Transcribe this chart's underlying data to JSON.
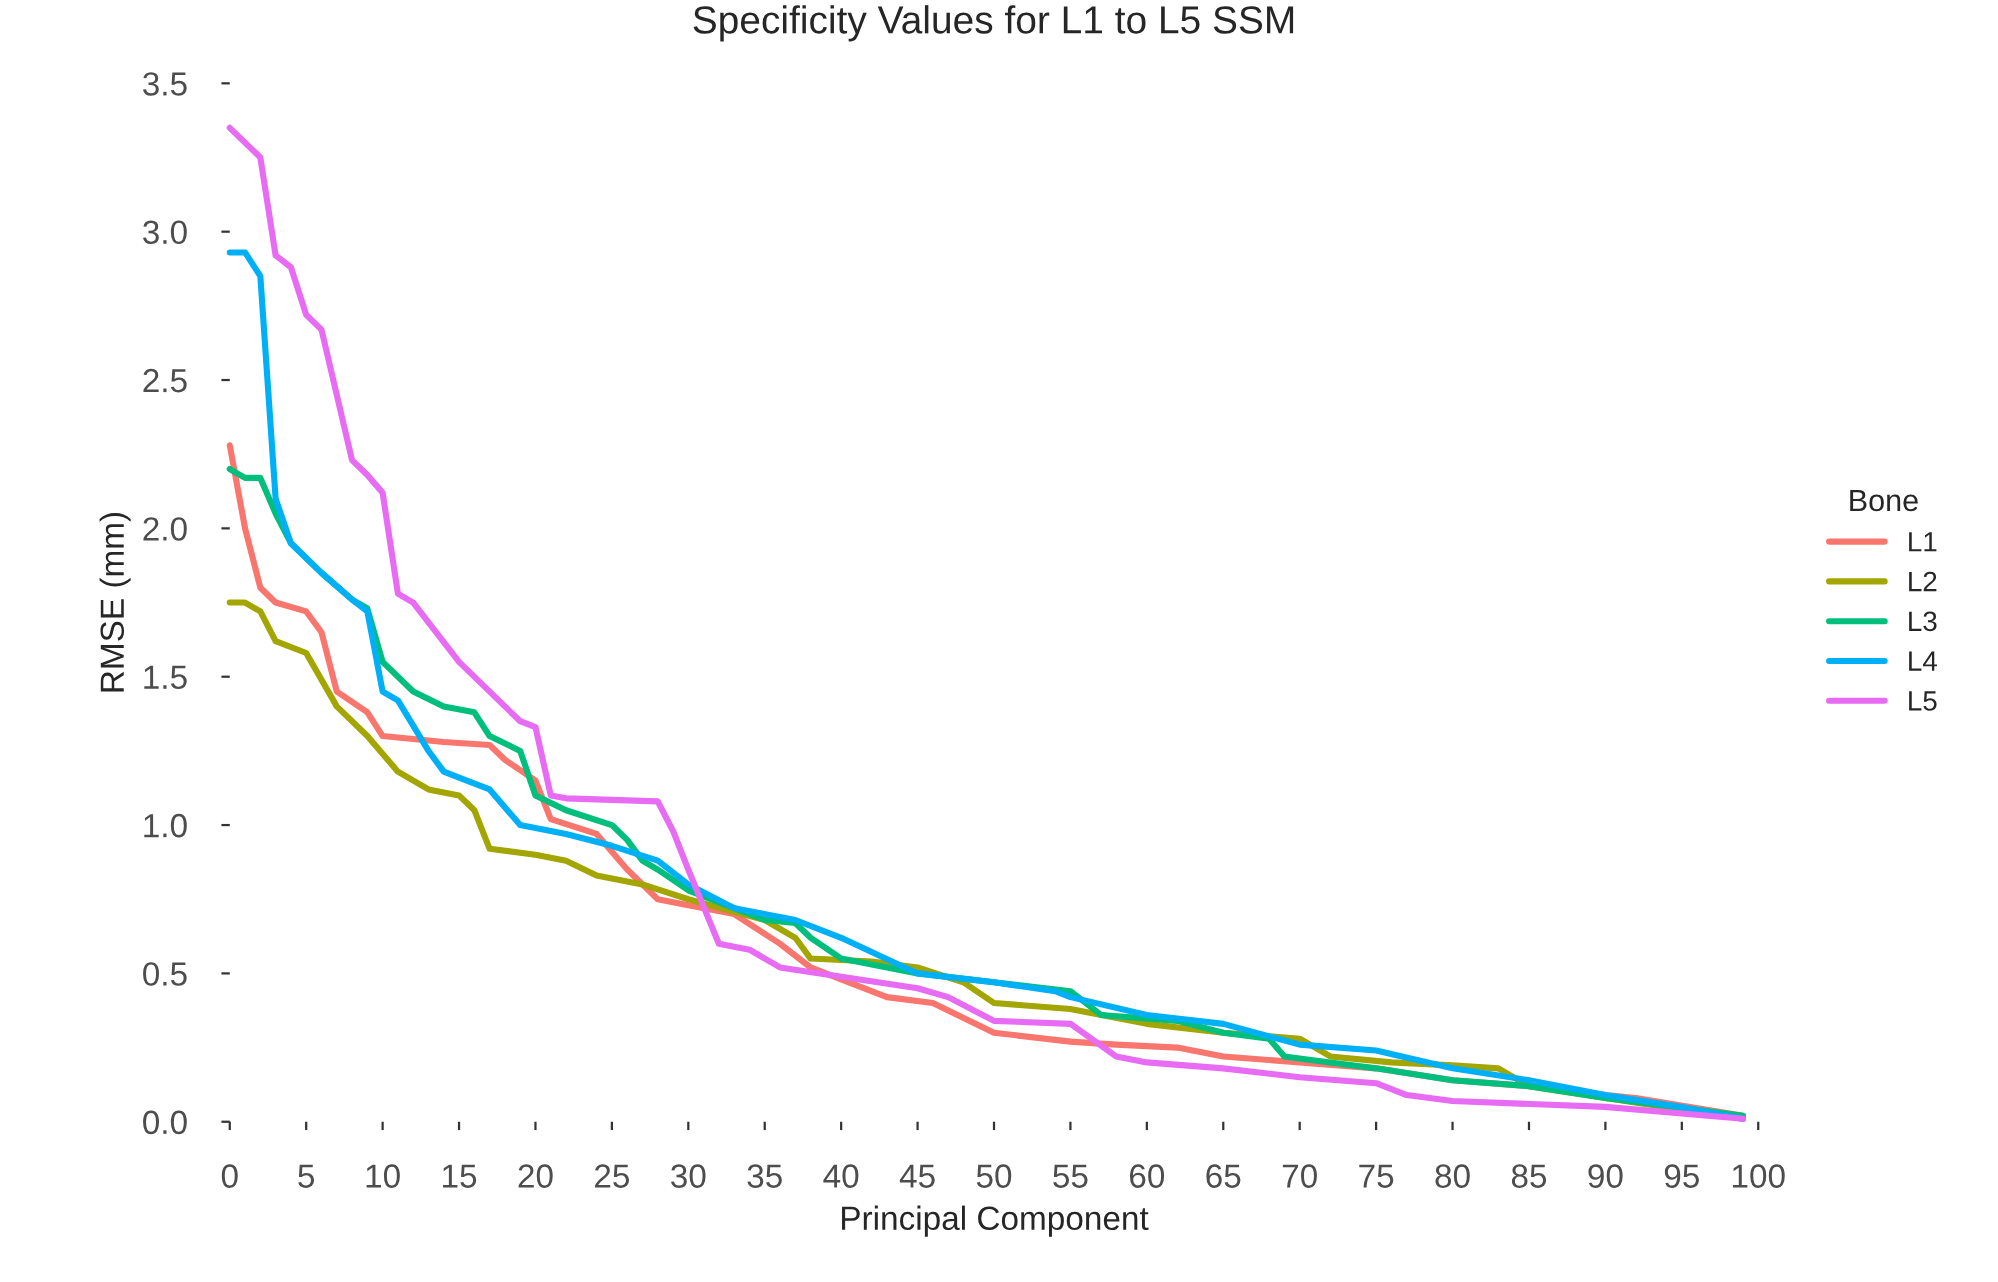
{
  "chart_data": {
    "type": "line",
    "title": "Specificity Values for L1 to L5 SSM",
    "xlabel": "Principal Component",
    "ylabel": "RMSE (mm)",
    "legend_title": "Bone",
    "legend": "right",
    "grid": false,
    "marker": "none",
    "line_style": "solid",
    "xlim": [
      0,
      100
    ],
    "ylim": [
      0,
      3.5
    ],
    "xticks": [
      0,
      5,
      10,
      15,
      20,
      25,
      30,
      35,
      40,
      45,
      50,
      55,
      60,
      65,
      70,
      75,
      80,
      85,
      90,
      95,
      100
    ],
    "yticks": [
      {
        "value": 0,
        "label": "0.0"
      },
      {
        "value": 0.5,
        "label": "0.5"
      },
      {
        "value": 1,
        "label": "1.0"
      },
      {
        "value": 1.5,
        "label": "1.5"
      },
      {
        "value": 2,
        "label": "2.0"
      },
      {
        "value": 2.5,
        "label": "2.5"
      },
      {
        "value": 3,
        "label": "3.0"
      },
      {
        "value": 3.5,
        "label": "3.5"
      }
    ],
    "series": [
      {
        "name": "L1",
        "color": "#f8766d",
        "x": [
          0,
          1,
          2,
          3,
          5,
          6,
          7,
          9,
          10,
          14,
          17,
          18,
          20,
          21,
          24,
          26,
          28,
          30,
          33,
          36,
          38,
          40,
          43,
          46,
          50,
          55,
          58,
          62,
          65,
          70,
          75,
          80,
          85,
          88,
          92,
          99
        ],
        "values": [
          2.28,
          2.0,
          1.8,
          1.75,
          1.72,
          1.65,
          1.45,
          1.38,
          1.3,
          1.28,
          1.27,
          1.22,
          1.15,
          1.02,
          0.97,
          0.85,
          0.75,
          0.73,
          0.7,
          0.6,
          0.52,
          0.48,
          0.42,
          0.4,
          0.3,
          0.27,
          0.26,
          0.25,
          0.22,
          0.2,
          0.18,
          0.14,
          0.12,
          0.1,
          0.08,
          0.02
        ]
      },
      {
        "name": "L2",
        "color": "#a3a500",
        "x": [
          0,
          1,
          2,
          3,
          5,
          7,
          9,
          11,
          13,
          15,
          16,
          17,
          20,
          22,
          24,
          27,
          30,
          35,
          37,
          38,
          42,
          45,
          48,
          50,
          55,
          60,
          65,
          70,
          72,
          76,
          80,
          83,
          85,
          90,
          99
        ],
        "values": [
          1.75,
          1.75,
          1.72,
          1.62,
          1.58,
          1.4,
          1.3,
          1.18,
          1.12,
          1.1,
          1.05,
          0.92,
          0.9,
          0.88,
          0.83,
          0.8,
          0.75,
          0.68,
          0.62,
          0.55,
          0.54,
          0.52,
          0.47,
          0.4,
          0.38,
          0.33,
          0.3,
          0.28,
          0.22,
          0.2,
          0.19,
          0.18,
          0.12,
          0.08,
          0.01
        ]
      },
      {
        "name": "L3",
        "color": "#00bf7d",
        "x": [
          0,
          1,
          2,
          3,
          4,
          6,
          8,
          9,
          10,
          12,
          14,
          16,
          17,
          19,
          20,
          22,
          25,
          26,
          27,
          28,
          30,
          33,
          35,
          37,
          38,
          40,
          45,
          50,
          55,
          57,
          62,
          65,
          68,
          69,
          72,
          75,
          80,
          85,
          90,
          99
        ],
        "values": [
          2.2,
          2.17,
          2.17,
          2.05,
          1.95,
          1.85,
          1.76,
          1.73,
          1.55,
          1.45,
          1.4,
          1.38,
          1.3,
          1.25,
          1.1,
          1.05,
          1.0,
          0.95,
          0.88,
          0.85,
          0.78,
          0.72,
          0.68,
          0.67,
          0.62,
          0.55,
          0.5,
          0.47,
          0.44,
          0.36,
          0.34,
          0.3,
          0.28,
          0.22,
          0.2,
          0.18,
          0.14,
          0.12,
          0.08,
          0.02
        ]
      },
      {
        "name": "L4",
        "color": "#00b0f6",
        "x": [
          0,
          1,
          2,
          3,
          4,
          6,
          8,
          9,
          10,
          11,
          13,
          14,
          15,
          17,
          19,
          22,
          25,
          28,
          30,
          33,
          37,
          40,
          45,
          50,
          54,
          55,
          60,
          65,
          70,
          75,
          80,
          85,
          90,
          95,
          99
        ],
        "values": [
          2.93,
          2.93,
          2.85,
          2.1,
          1.95,
          1.85,
          1.76,
          1.72,
          1.45,
          1.42,
          1.25,
          1.18,
          1.16,
          1.12,
          1.0,
          0.97,
          0.93,
          0.88,
          0.8,
          0.72,
          0.68,
          0.62,
          0.5,
          0.47,
          0.44,
          0.42,
          0.36,
          0.33,
          0.26,
          0.24,
          0.18,
          0.14,
          0.09,
          0.05,
          0.01
        ]
      },
      {
        "name": "L5",
        "color": "#e76bf3",
        "x": [
          0,
          2,
          3,
          4,
          5,
          6,
          7,
          8,
          9,
          10,
          11,
          12,
          15,
          18,
          19,
          20,
          21,
          22,
          28,
          29,
          30,
          32,
          34,
          36,
          45,
          47,
          50,
          55,
          58,
          60,
          65,
          70,
          75,
          77,
          80,
          90,
          99
        ],
        "values": [
          3.35,
          3.25,
          2.92,
          2.88,
          2.72,
          2.67,
          2.45,
          2.23,
          2.18,
          2.12,
          1.78,
          1.75,
          1.55,
          1.4,
          1.35,
          1.33,
          1.1,
          1.09,
          1.08,
          0.98,
          0.85,
          0.6,
          0.58,
          0.52,
          0.45,
          0.42,
          0.34,
          0.33,
          0.22,
          0.2,
          0.18,
          0.15,
          0.13,
          0.09,
          0.07,
          0.05,
          0.01
        ]
      }
    ]
  }
}
